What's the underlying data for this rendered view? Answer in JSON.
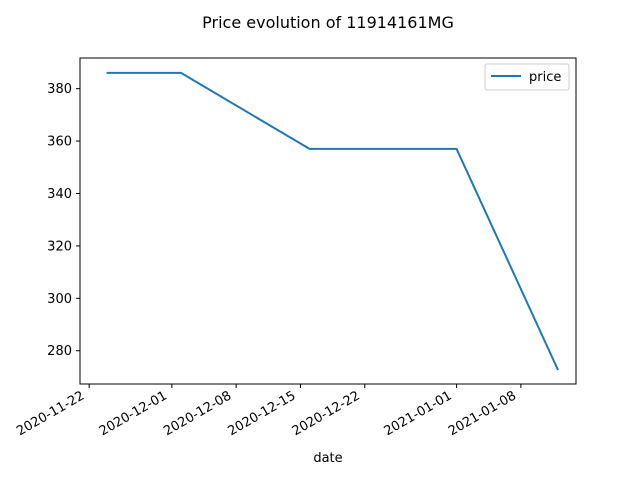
{
  "chart_data": {
    "type": "line",
    "title": "Price evolution of 11914161MG",
    "xlabel": "date",
    "ylabel": "",
    "x_ticks": [
      "2020-11-22",
      "2020-12-01",
      "2020-12-08",
      "2020-12-15",
      "2020-12-22",
      "2021-01-01",
      "2021-01-08"
    ],
    "y_ticks": [
      280,
      300,
      320,
      340,
      360,
      380
    ],
    "xlim": [
      "2020-11-21",
      "2021-01-14"
    ],
    "ylim": [
      267.3,
      391.7
    ],
    "series": [
      {
        "name": "price",
        "color": "#1f77b4",
        "x": [
          "2020-11-24",
          "2020-12-02",
          "2020-12-16",
          "2021-01-01",
          "2021-01-12"
        ],
        "y": [
          386,
          386,
          357,
          357,
          273
        ]
      }
    ],
    "legend": {
      "position": "top-right"
    },
    "grid": false
  }
}
